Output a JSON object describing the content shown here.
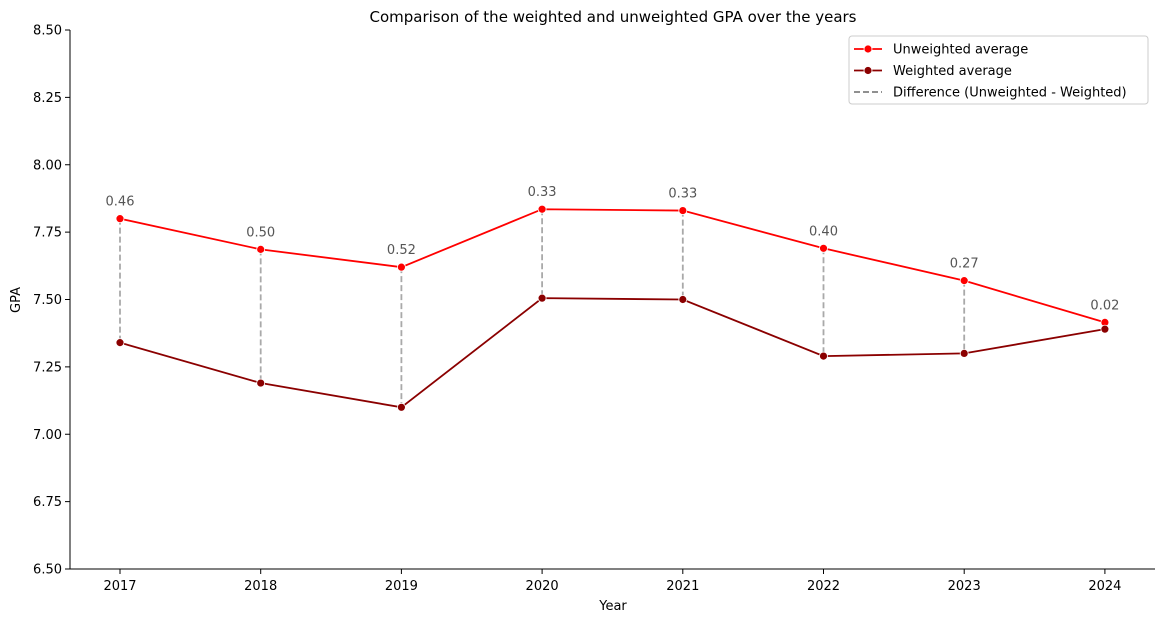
{
  "chart_data": {
    "type": "line",
    "title": "Comparison of the weighted and unweighted GPA over the years",
    "xlabel": "Year",
    "ylabel": "GPA",
    "categories": [
      "2017",
      "2018",
      "2019",
      "2020",
      "2021",
      "2022",
      "2023",
      "2024"
    ],
    "ylim": [
      6.5,
      8.5
    ],
    "yticks": [
      "6.50",
      "6.75",
      "7.00",
      "7.25",
      "7.50",
      "7.75",
      "8.00",
      "8.25",
      "8.50"
    ],
    "grid": false,
    "legend_position": "top-right",
    "series": [
      {
        "name": "Unweighted average",
        "color": "#ff0000",
        "values": [
          7.8,
          7.686,
          7.62,
          7.835,
          7.83,
          7.69,
          7.57,
          7.415
        ]
      },
      {
        "name": "Weighted average",
        "color": "#8b0000",
        "values": [
          7.34,
          7.19,
          7.1,
          7.505,
          7.5,
          7.29,
          7.3,
          7.39
        ]
      }
    ],
    "difference": {
      "name": "Difference (Unweighted - Weighted)",
      "color": "#a9a9a9",
      "labels": [
        "0.46",
        "0.50",
        "0.52",
        "0.33",
        "0.33",
        "0.40",
        "0.27",
        "0.02"
      ]
    }
  }
}
